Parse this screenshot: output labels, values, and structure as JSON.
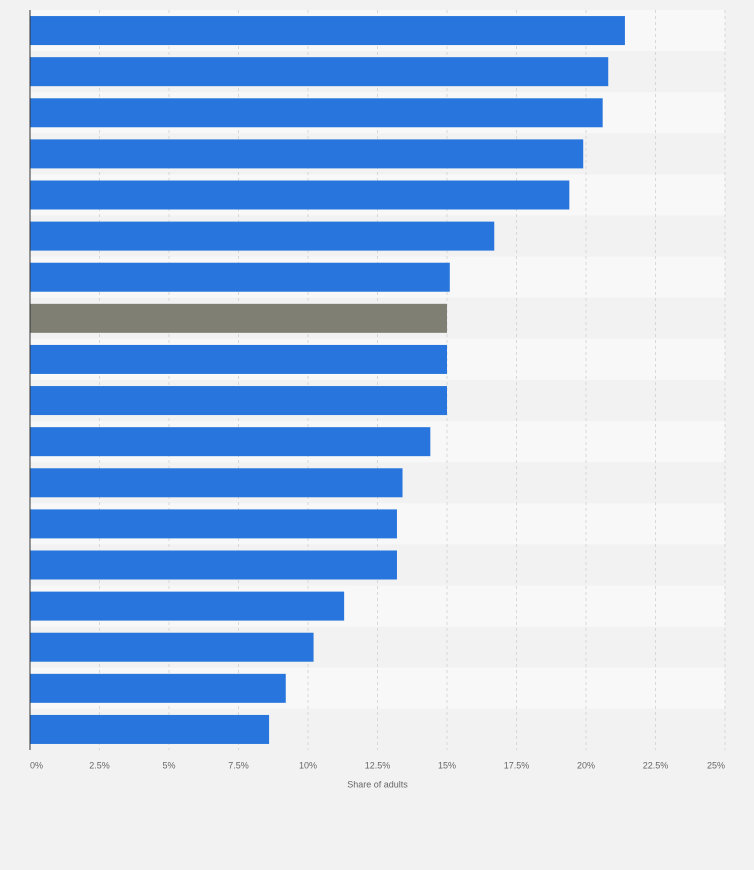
{
  "chart_data": {
    "type": "hbar",
    "categories": [
      null,
      null,
      null,
      null,
      null,
      null,
      null,
      null,
      null,
      null,
      null,
      null,
      null,
      null,
      null,
      null,
      null,
      null
    ],
    "values": [
      21.4,
      20.8,
      20.6,
      19.9,
      19.4,
      16.7,
      15.1,
      15.0,
      15.0,
      15.0,
      14.4,
      13.4,
      13.2,
      13.2,
      11.3,
      10.2,
      9.2,
      8.6
    ],
    "colors": [
      "#2876dd",
      "#2876dd",
      "#2876dd",
      "#2876dd",
      "#2876dd",
      "#2876dd",
      "#2876dd",
      "#7f7f74",
      "#2876dd",
      "#2876dd",
      "#2876dd",
      "#2876dd",
      "#2876dd",
      "#2876dd",
      "#2876dd",
      "#2876dd",
      "#2876dd",
      "#2876dd"
    ],
    "xlabel": "Share of adults",
    "xlim": [
      0,
      25
    ],
    "xticks": [
      {
        "value": 0,
        "label": "0%"
      },
      {
        "value": 2.5,
        "label": "2.5%"
      },
      {
        "value": 5,
        "label": "5%"
      },
      {
        "value": 7.5,
        "label": "7.5%"
      },
      {
        "value": 10,
        "label": "10%"
      },
      {
        "value": 12.5,
        "label": "12.5%"
      },
      {
        "value": 15,
        "label": "15%"
      },
      {
        "value": 17.5,
        "label": "17.5%"
      },
      {
        "value": 20,
        "label": "20%"
      },
      {
        "value": 22.5,
        "label": "22.5%"
      },
      {
        "value": 25,
        "label": "25%"
      }
    ],
    "grid": true
  }
}
